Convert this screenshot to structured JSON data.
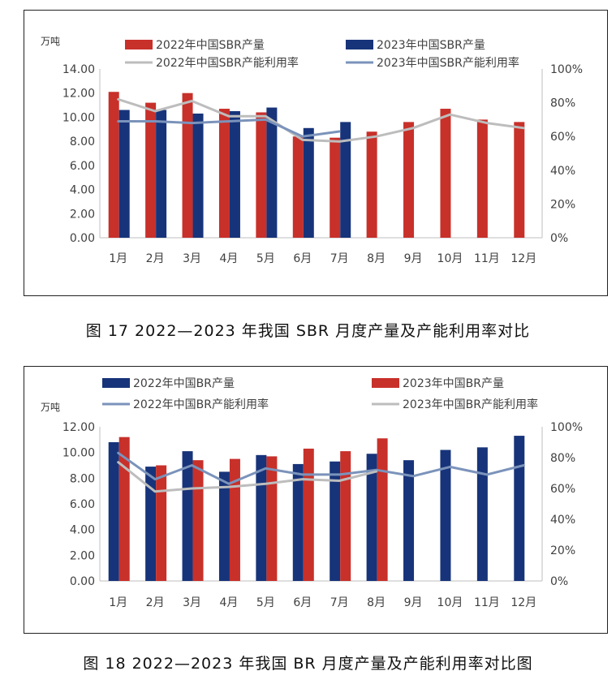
{
  "chart_data": [
    {
      "type": "bar",
      "caption": "图 17  2022—2023 年我国 SBR 月度产量及产能利用率对比",
      "unit_label": "万吨",
      "categories": [
        "1月",
        "2月",
        "3月",
        "4月",
        "5月",
        "6月",
        "7月",
        "8月",
        "9月",
        "10月",
        "11月",
        "12月"
      ],
      "ylim": [
        0,
        14
      ],
      "yticks": [
        "14.00",
        "12.00",
        "10.00",
        "8.00",
        "6.00",
        "4.00",
        "2.00",
        "0.00"
      ],
      "y2lim": [
        0,
        100
      ],
      "y2ticks": [
        "100%",
        "80%",
        "60%",
        "40%",
        "20%",
        "0%"
      ],
      "series": [
        {
          "name": "2022年中国SBR产量",
          "kind": "bar",
          "color": "#c8302a",
          "values": [
            12.1,
            11.2,
            12.0,
            10.7,
            10.4,
            8.4,
            8.3,
            8.8,
            9.6,
            10.7,
            9.8,
            9.6
          ]
        },
        {
          "name": "2023年中国SBR产量",
          "kind": "bar",
          "color": "#17347a",
          "values": [
            10.6,
            10.6,
            10.3,
            10.5,
            10.8,
            9.1,
            9.6,
            null,
            null,
            null,
            null,
            null
          ]
        },
        {
          "name": "2022年中国SBR产能利用率",
          "kind": "line",
          "axis": "right",
          "color": "#bdbdbd",
          "values": [
            82,
            75,
            81,
            72,
            72,
            58,
            57,
            60,
            65,
            73,
            68,
            65
          ]
        },
        {
          "name": "2023年中国SBR产能利用率",
          "kind": "line",
          "axis": "right",
          "color": "#7b93bb",
          "values": [
            69,
            69,
            68,
            69,
            70,
            60,
            63,
            null,
            null,
            null,
            null,
            null
          ]
        }
      ]
    },
    {
      "type": "bar",
      "caption": "图 18  2022—2023 年我国 BR 月度产量及产能利用率对比图",
      "unit_label": "万吨",
      "categories": [
        "1月",
        "2月",
        "3月",
        "4月",
        "5月",
        "6月",
        "7月",
        "8月",
        "9月",
        "10月",
        "11月",
        "12月"
      ],
      "ylim": [
        0,
        12
      ],
      "yticks": [
        "12.00",
        "10.00",
        "8.00",
        "6.00",
        "4.00",
        "2.00",
        "0.00"
      ],
      "y2lim": [
        0,
        100
      ],
      "y2ticks": [
        "100%",
        "80%",
        "60%",
        "40%",
        "20%",
        "0%"
      ],
      "series": [
        {
          "name": "2022年中国BR产量",
          "kind": "bar",
          "color": "#17347a",
          "values": [
            10.8,
            8.9,
            10.1,
            8.5,
            9.8,
            9.1,
            9.3,
            9.9,
            9.4,
            10.2,
            10.4,
            11.3
          ]
        },
        {
          "name": "2023年中国BR产量",
          "kind": "bar",
          "color": "#c8302a",
          "values": [
            11.2,
            9.0,
            9.4,
            9.5,
            9.7,
            10.3,
            10.1,
            11.1,
            null,
            null,
            null,
            null
          ]
        },
        {
          "name": "2022年中国BR产能利用率",
          "kind": "line",
          "axis": "right",
          "color": "#7b93bb",
          "values": [
            83,
            66,
            75,
            63,
            73,
            69,
            69,
            72,
            68,
            74,
            69,
            75
          ]
        },
        {
          "name": "2023年中国BR产能利用率",
          "kind": "line",
          "axis": "right",
          "color": "#bdbdbd",
          "values": [
            77,
            58,
            60,
            61,
            63,
            66,
            65,
            71,
            null,
            null,
            null,
            null
          ]
        }
      ]
    }
  ]
}
